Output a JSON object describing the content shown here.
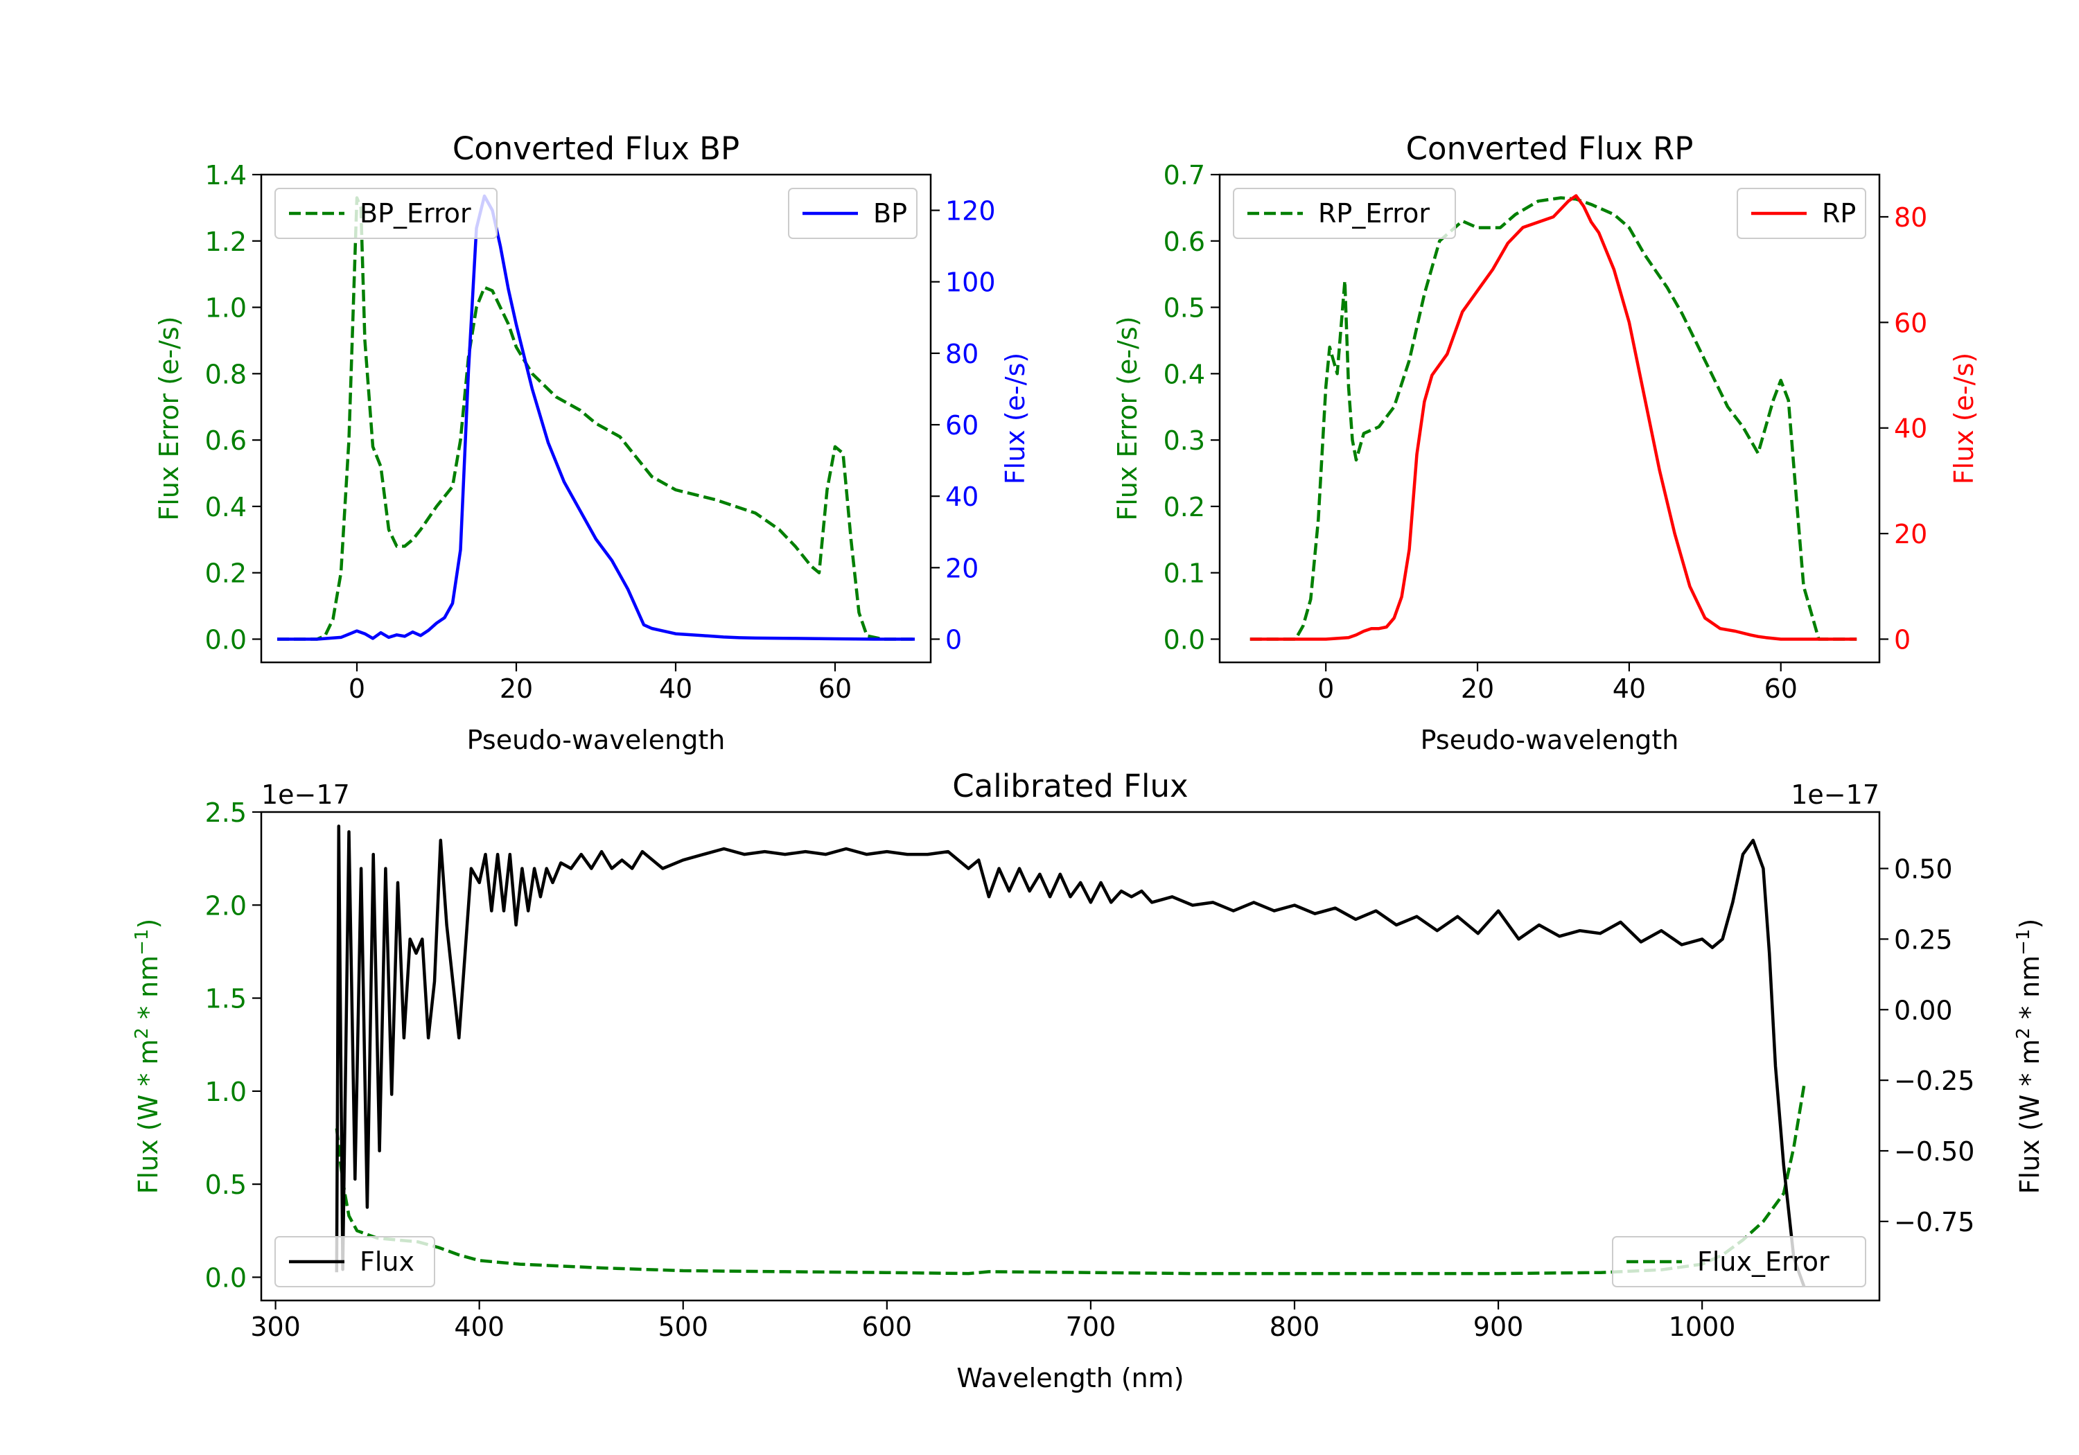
{
  "colors": {
    "error": "#007f00",
    "bp": "#0000ff",
    "rp": "#ff0000",
    "flux": "#000000",
    "axis": "#000000",
    "legend_border": "#cccccc"
  },
  "chart_data": [
    {
      "id": "bp",
      "type": "line",
      "title": "Converted Flux BP",
      "xlabel": "Pseudo-wavelength",
      "ylabel_left": "Flux Error (e-/s)",
      "ylabel_right": "Flux (e-/s)",
      "xlim": [
        -12,
        72
      ],
      "ylim_left": [
        -0.07,
        1.4
      ],
      "ylim_right": [
        -6.5,
        130
      ],
      "xticks": [
        0,
        20,
        40,
        60
      ],
      "yticks_left": [
        0.0,
        0.2,
        0.4,
        0.6,
        0.8,
        1.0,
        1.2,
        1.4
      ],
      "yticks_right": [
        0,
        20,
        40,
        60,
        80,
        100,
        120
      ],
      "ytick_left_decimals": 1,
      "ytick_right_decimals": 0,
      "series": [
        {
          "name": "BP_Error",
          "axis": "left",
          "style": "dashed",
          "color_key": "error",
          "legend": "top-left",
          "x": [
            -10,
            -5,
            -4,
            -3,
            -2,
            -1,
            0,
            0.5,
            1,
            2,
            3,
            4,
            5,
            6,
            7,
            8,
            10,
            12,
            13,
            14,
            15,
            16,
            17,
            18,
            19,
            20,
            22,
            25,
            28,
            30,
            33,
            35,
            37,
            40,
            45,
            50,
            53,
            55,
            57,
            58,
            59,
            60,
            61,
            62,
            63,
            64,
            66,
            70
          ],
          "y": [
            0,
            0,
            0.01,
            0.06,
            0.2,
            0.6,
            1.33,
            1.3,
            0.9,
            0.58,
            0.52,
            0.33,
            0.28,
            0.28,
            0.3,
            0.33,
            0.4,
            0.46,
            0.6,
            0.85,
            1.0,
            1.06,
            1.05,
            1.0,
            0.95,
            0.88,
            0.8,
            0.73,
            0.69,
            0.65,
            0.61,
            0.55,
            0.49,
            0.45,
            0.42,
            0.38,
            0.33,
            0.28,
            0.22,
            0.2,
            0.45,
            0.58,
            0.56,
            0.3,
            0.08,
            0.01,
            0,
            0
          ]
        },
        {
          "name": "BP",
          "axis": "right",
          "style": "solid",
          "color_key": "bp",
          "legend": "top-right",
          "x": [
            -10,
            -5,
            -2,
            0,
            1,
            2,
            3,
            4,
            5,
            6,
            7,
            8,
            9,
            10,
            11,
            12,
            13,
            14,
            15,
            16,
            17,
            18,
            19,
            20,
            22,
            24,
            26,
            28,
            30,
            32,
            34,
            36,
            37,
            38,
            40,
            42,
            44,
            46,
            48,
            50,
            55,
            60,
            65,
            70
          ],
          "y": [
            0,
            0,
            0.5,
            2.3,
            1.5,
            0.2,
            1.8,
            0.5,
            1.2,
            0.8,
            2,
            1,
            2.5,
            4.5,
            6,
            10,
            25,
            75,
            115,
            124,
            120,
            110,
            98,
            88,
            70,
            55,
            44,
            36,
            28,
            22,
            14,
            4,
            3,
            2.5,
            1.5,
            1.2,
            0.9,
            0.6,
            0.4,
            0.3,
            0.2,
            0.1,
            0,
            0
          ]
        }
      ]
    },
    {
      "id": "rp",
      "type": "line",
      "title": "Converted Flux RP",
      "xlabel": "Pseudo-wavelength",
      "ylabel_left": "Flux Error (e-/s)",
      "ylabel_right": "Flux (e-/s)",
      "xlim": [
        -14,
        73
      ],
      "ylim_left": [
        -0.035,
        0.7
      ],
      "ylim_right": [
        -4.4,
        88
      ],
      "xticks": [
        0,
        20,
        40,
        60
      ],
      "yticks_left": [
        0.0,
        0.1,
        0.2,
        0.3,
        0.4,
        0.5,
        0.6,
        0.7
      ],
      "yticks_right": [
        0,
        20,
        40,
        60,
        80
      ],
      "ytick_left_decimals": 1,
      "ytick_right_decimals": 0,
      "series": [
        {
          "name": "RP_Error",
          "axis": "left",
          "style": "dashed",
          "color_key": "error",
          "legend": "top-left",
          "x": [
            -10,
            -4,
            -3,
            -2,
            -1,
            0,
            0.5,
            1,
            1.5,
            2,
            2.5,
            3,
            3.5,
            4,
            5,
            7,
            9,
            11,
            13,
            15,
            18,
            20,
            23,
            25,
            28,
            31,
            33,
            35,
            38,
            40,
            42,
            45,
            47,
            50,
            53,
            55,
            56,
            57,
            58,
            59,
            60,
            61,
            62,
            63,
            65,
            70
          ],
          "y": [
            0,
            0,
            0.02,
            0.06,
            0.18,
            0.38,
            0.44,
            0.42,
            0.4,
            0.47,
            0.54,
            0.38,
            0.3,
            0.27,
            0.31,
            0.32,
            0.35,
            0.42,
            0.52,
            0.6,
            0.63,
            0.62,
            0.62,
            0.64,
            0.66,
            0.665,
            0.663,
            0.655,
            0.64,
            0.62,
            0.58,
            0.53,
            0.49,
            0.42,
            0.35,
            0.32,
            0.3,
            0.28,
            0.32,
            0.36,
            0.39,
            0.36,
            0.22,
            0.08,
            0,
            0
          ]
        },
        {
          "name": "RP",
          "axis": "right",
          "style": "solid",
          "color_key": "rp",
          "legend": "top-right",
          "x": [
            -10,
            -5,
            0,
            3,
            4,
            5,
            6,
            7,
            8,
            9,
            10,
            11,
            12,
            13,
            14,
            15,
            16,
            17,
            18,
            20,
            22,
            24,
            26,
            28,
            30,
            32,
            33,
            34,
            35,
            36,
            38,
            40,
            42,
            44,
            46,
            48,
            50,
            52,
            54,
            56,
            57,
            58,
            60,
            65,
            70
          ],
          "y": [
            0,
            0,
            0,
            0.3,
            0.8,
            1.5,
            2,
            2,
            2.3,
            4,
            8,
            17,
            35,
            45,
            50,
            52,
            54,
            58,
            62,
            66,
            70,
            75,
            78,
            79,
            80,
            83,
            84,
            82,
            79,
            77,
            70,
            60,
            46,
            32,
            20,
            10,
            4,
            2,
            1.5,
            0.8,
            0.5,
            0.3,
            0,
            0,
            0
          ]
        }
      ]
    },
    {
      "id": "cal",
      "type": "line",
      "title": "Calibrated Flux",
      "xlabel": "Wavelength (nm)",
      "ylabel_left_parts": [
        "Flux (W * m",
        "2",
        " * nm",
        "−1",
        ")"
      ],
      "ylabel_right_parts": [
        "Flux (W * m",
        "2",
        " * nm",
        "−1",
        ")"
      ],
      "offset_left": "1e−17",
      "offset_right": "1e−17",
      "xlim": [
        293,
        1087
      ],
      "ylim_left": [
        -0.125,
        2.5
      ],
      "ylim_right": [
        -1.03,
        0.7
      ],
      "xticks": [
        300,
        400,
        500,
        600,
        700,
        800,
        900,
        1000
      ],
      "yticks_left": [
        0.0,
        0.5,
        1.0,
        1.5,
        2.0,
        2.5
      ],
      "yticks_right": [
        -0.75,
        -0.5,
        -0.25,
        0.0,
        0.25,
        0.5
      ],
      "ytick_left_decimals": 1,
      "ytick_right_decimals": 2,
      "series": [
        {
          "name": "Flux_Error",
          "axis": "left",
          "style": "dashed",
          "color_key": "error",
          "legend": "bottom-right",
          "x": [
            330,
            332,
            334,
            336,
            340,
            345,
            350,
            360,
            370,
            380,
            390,
            400,
            420,
            440,
            460,
            500,
            550,
            600,
            640,
            650,
            700,
            750,
            800,
            850,
            900,
            950,
            980,
            1000,
            1010,
            1020,
            1030,
            1040,
            1045,
            1050
          ],
          "y": [
            0.8,
            0.6,
            0.45,
            0.33,
            0.25,
            0.23,
            0.21,
            0.2,
            0.19,
            0.16,
            0.12,
            0.09,
            0.07,
            0.06,
            0.05,
            0.035,
            0.03,
            0.025,
            0.02,
            0.03,
            0.025,
            0.02,
            0.02,
            0.02,
            0.02,
            0.025,
            0.04,
            0.07,
            0.12,
            0.2,
            0.3,
            0.45,
            0.7,
            1.03
          ]
        },
        {
          "name": "Flux",
          "axis": "right",
          "style": "solid",
          "color_key": "flux",
          "legend": "bottom-left",
          "x": [
            330,
            331,
            333,
            336,
            339,
            342,
            345,
            348,
            351,
            354,
            357,
            360,
            363,
            366,
            369,
            372,
            375,
            378,
            381,
            384,
            387,
            390,
            393,
            396,
            400,
            403,
            406,
            409,
            412,
            415,
            418,
            421,
            424,
            427,
            430,
            433,
            436,
            440,
            445,
            450,
            455,
            460,
            465,
            470,
            475,
            480,
            485,
            490,
            500,
            510,
            520,
            530,
            540,
            550,
            560,
            570,
            580,
            590,
            600,
            610,
            620,
            630,
            640,
            645,
            650,
            655,
            660,
            665,
            670,
            675,
            680,
            685,
            690,
            695,
            700,
            705,
            710,
            715,
            720,
            725,
            730,
            740,
            750,
            760,
            770,
            780,
            790,
            800,
            810,
            820,
            830,
            840,
            850,
            860,
            870,
            880,
            890,
            900,
            910,
            920,
            930,
            940,
            950,
            960,
            970,
            980,
            990,
            1000,
            1005,
            1010,
            1015,
            1020,
            1025,
            1030,
            1033,
            1036,
            1040,
            1045,
            1050
          ],
          "y": [
            -0.93,
            0.65,
            -0.92,
            0.63,
            -0.6,
            0.5,
            -0.7,
            0.55,
            -0.5,
            0.5,
            -0.3,
            0.45,
            -0.1,
            0.25,
            0.2,
            0.25,
            -0.1,
            0.1,
            0.6,
            0.3,
            0.1,
            -0.1,
            0.2,
            0.5,
            0.45,
            0.55,
            0.35,
            0.55,
            0.35,
            0.55,
            0.3,
            0.5,
            0.35,
            0.5,
            0.4,
            0.5,
            0.45,
            0.52,
            0.5,
            0.55,
            0.5,
            0.56,
            0.5,
            0.53,
            0.5,
            0.56,
            0.53,
            0.5,
            0.53,
            0.55,
            0.57,
            0.55,
            0.56,
            0.55,
            0.56,
            0.55,
            0.57,
            0.55,
            0.56,
            0.55,
            0.55,
            0.56,
            0.5,
            0.53,
            0.4,
            0.5,
            0.42,
            0.5,
            0.42,
            0.48,
            0.4,
            0.48,
            0.4,
            0.45,
            0.38,
            0.45,
            0.38,
            0.42,
            0.4,
            0.42,
            0.38,
            0.4,
            0.37,
            0.38,
            0.35,
            0.38,
            0.35,
            0.37,
            0.34,
            0.36,
            0.32,
            0.35,
            0.3,
            0.33,
            0.28,
            0.33,
            0.27,
            0.35,
            0.25,
            0.3,
            0.26,
            0.28,
            0.27,
            0.31,
            0.24,
            0.28,
            0.23,
            0.25,
            0.22,
            0.25,
            0.38,
            0.55,
            0.6,
            0.5,
            0.2,
            -0.2,
            -0.55,
            -0.88,
            -0.98
          ]
        }
      ]
    }
  ]
}
